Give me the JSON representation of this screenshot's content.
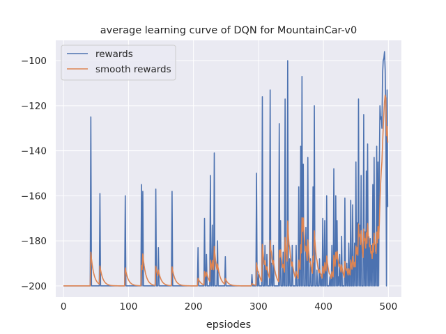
{
  "chart_data": {
    "type": "line",
    "title": "average learning curve of DQN for MountainCar-v0",
    "xlabel": "epsiodes",
    "ylabel": "",
    "xlim": [
      -12,
      520
    ],
    "ylim": [
      -205,
      -91
    ],
    "xticks": [
      0,
      100,
      200,
      300,
      400,
      500
    ],
    "yticks": [
      -200,
      -180,
      -160,
      -140,
      -120,
      -100
    ],
    "grid": true,
    "legend_position": "top-left",
    "colors": {
      "background": "#eaeaf2",
      "grid": "#ffffff",
      "rewards": "#4c72b0",
      "smooth": "#dd8452"
    },
    "series": [
      {
        "name": "rewards",
        "baseline": -200,
        "spikes": [
          [
            42,
            -125
          ],
          [
            56,
            -159
          ],
          [
            95,
            -160
          ],
          [
            120,
            -155
          ],
          [
            122,
            -158
          ],
          [
            142,
            -157
          ],
          [
            146,
            -183
          ],
          [
            167,
            -158
          ],
          [
            207,
            -183
          ],
          [
            217,
            -170
          ],
          [
            220,
            -186
          ],
          [
            226,
            -151
          ],
          [
            229,
            -173
          ],
          [
            232,
            -141
          ],
          [
            237,
            -180
          ],
          [
            249,
            -187
          ],
          [
            290,
            -195
          ],
          [
            297,
            -150
          ],
          [
            300,
            -195
          ],
          [
            306,
            -116
          ],
          [
            310,
            -182
          ],
          [
            313,
            -186
          ],
          [
            318,
            -113
          ],
          [
            320,
            -190
          ],
          [
            323,
            -182
          ],
          [
            332,
            -128
          ],
          [
            334,
            -171
          ],
          [
            338,
            -185
          ],
          [
            341,
            -117
          ],
          [
            345,
            -100
          ],
          [
            348,
            -188
          ],
          [
            352,
            -182
          ],
          [
            358,
            -182
          ],
          [
            362,
            -156
          ],
          [
            365,
            -138
          ],
          [
            367,
            -107
          ],
          [
            369,
            -146
          ],
          [
            373,
            -174
          ],
          [
            376,
            -143
          ],
          [
            380,
            -188
          ],
          [
            384,
            -156
          ],
          [
            386,
            -120
          ],
          [
            390,
            -193
          ],
          [
            394,
            -188
          ],
          [
            396,
            -196
          ],
          [
            399,
            -170
          ],
          [
            402,
            -171
          ],
          [
            405,
            -160
          ],
          [
            410,
            -196
          ],
          [
            413,
            -182
          ],
          [
            416,
            -148
          ],
          [
            419,
            -160
          ],
          [
            421,
            -171
          ],
          [
            423,
            -196
          ],
          [
            425,
            -186
          ],
          [
            428,
            -178
          ],
          [
            433,
            -161
          ],
          [
            436,
            -190
          ],
          [
            439,
            -181
          ],
          [
            442,
            -162
          ],
          [
            445,
            -164
          ],
          [
            448,
            -181
          ],
          [
            450,
            -145
          ],
          [
            452,
            -172
          ],
          [
            454,
            -117
          ],
          [
            456,
            -173
          ],
          [
            458,
            -151
          ],
          [
            460,
            -200
          ],
          [
            462,
            -124
          ],
          [
            464,
            -176
          ],
          [
            466,
            -149
          ],
          [
            468,
            -137
          ],
          [
            470,
            -180
          ],
          [
            472,
            -179
          ],
          [
            474,
            -182
          ],
          [
            476,
            -155
          ],
          [
            478,
            -143
          ],
          [
            480,
            -185
          ],
          [
            482,
            -138
          ],
          [
            484,
            -145
          ],
          [
            486,
            -147
          ],
          [
            487,
            -120
          ],
          [
            488,
            -126
          ],
          [
            489,
            -125
          ],
          [
            490,
            -130
          ],
          [
            491,
            -106
          ],
          [
            492,
            -100
          ],
          [
            493,
            -99
          ],
          [
            494,
            -96
          ],
          [
            495,
            -104
          ],
          [
            496,
            -122
          ],
          [
            497,
            -200
          ],
          [
            498,
            -113
          ],
          [
            499,
            -165
          ]
        ]
      },
      {
        "name": "smooth rewards",
        "smoothing": 0.8
      }
    ]
  }
}
